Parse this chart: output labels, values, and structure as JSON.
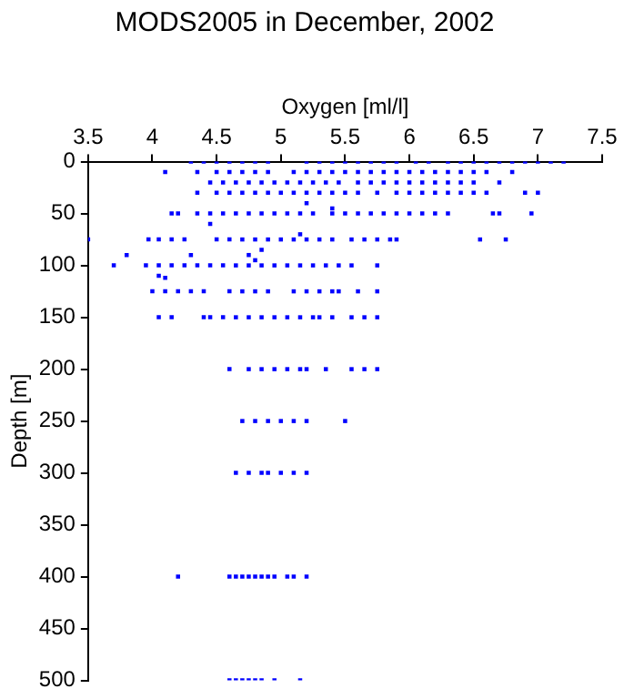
{
  "chart_data": {
    "type": "scatter",
    "title": "MODS2005 in December, 2002",
    "xlabel": "Oxygen [ml/l]",
    "ylabel": "Depth [m]",
    "xlim": [
      3.5,
      7.5
    ],
    "xticks": [
      3.5,
      4,
      4.5,
      5,
      5.5,
      6,
      6.5,
      7,
      7.5
    ],
    "ylim": [
      500,
      0
    ],
    "yticks": [
      0,
      50,
      100,
      150,
      200,
      250,
      300,
      350,
      400,
      450,
      500
    ],
    "grid": false,
    "legend": false,
    "marker": "square",
    "series": [
      {
        "color": "#0000ff",
        "x": [
          4.3,
          4.4,
          4.5,
          4.6,
          4.7,
          4.8,
          4.9,
          5.2,
          5.3,
          5.4,
          5.5,
          5.6,
          5.7,
          5.8,
          5.9,
          6.05,
          6.15,
          6.3,
          6.4,
          6.5,
          6.6,
          6.7,
          6.8,
          6.9,
          7.0,
          7.1,
          7.2
        ],
        "values": [
          0,
          0,
          0,
          0,
          0,
          0,
          0,
          0,
          0,
          0,
          0,
          0,
          0,
          0,
          0,
          0,
          0,
          0,
          0,
          0,
          0,
          0,
          0,
          0,
          0,
          0,
          0
        ]
      },
      {
        "color": "#0000ff",
        "x": [
          4.1,
          4.35,
          4.5,
          4.6,
          4.7,
          4.8,
          4.9,
          5.1,
          5.2,
          5.3,
          5.4,
          5.5,
          5.6,
          5.7,
          5.8,
          5.9,
          6.0,
          6.1,
          6.2,
          6.3,
          6.4,
          6.5,
          6.6,
          6.8
        ],
        "values": [
          10,
          10,
          10,
          10,
          10,
          10,
          10,
          10,
          10,
          10,
          10,
          10,
          10,
          10,
          10,
          10,
          10,
          10,
          10,
          10,
          10,
          10,
          10,
          10
        ]
      },
      {
        "color": "#0000ff",
        "x": [
          4.45,
          4.55,
          4.65,
          4.75,
          4.85,
          4.95,
          5.05,
          5.15,
          5.25,
          5.35,
          5.45,
          5.6,
          5.7,
          5.8,
          5.9,
          6.0,
          6.1,
          6.2,
          6.3,
          6.4,
          6.5,
          6.7
        ],
        "values": [
          20,
          20,
          20,
          20,
          20,
          20,
          20,
          20,
          20,
          20,
          20,
          20,
          20,
          20,
          20,
          20,
          20,
          20,
          20,
          20,
          20,
          20
        ]
      },
      {
        "color": "#0000ff",
        "x": [
          4.35,
          4.5,
          4.6,
          4.7,
          4.8,
          4.9,
          5.0,
          5.1,
          5.2,
          5.3,
          5.4,
          5.5,
          5.6,
          5.75,
          5.9,
          6.0,
          6.1,
          6.2,
          6.3,
          6.4,
          6.5,
          6.6,
          6.9,
          7.0
        ],
        "values": [
          30,
          30,
          30,
          30,
          30,
          30,
          30,
          30,
          30,
          30,
          30,
          30,
          30,
          30,
          30,
          30,
          30,
          30,
          30,
          30,
          30,
          30,
          30,
          30
        ]
      },
      {
        "color": "#0000ff",
        "x": [
          5.2,
          5.4,
          4.45,
          5.15
        ],
        "values": [
          40,
          45,
          60,
          70
        ]
      },
      {
        "color": "#0000ff",
        "x": [
          4.15,
          4.2,
          4.35,
          4.45,
          4.55,
          4.65,
          4.75,
          4.85,
          4.95,
          5.05,
          5.15,
          5.25,
          5.4,
          5.5,
          5.6,
          5.7,
          5.8,
          5.9,
          6.0,
          6.1,
          6.2,
          6.3,
          6.65,
          6.7,
          6.95
        ],
        "values": [
          50,
          50,
          50,
          50,
          50,
          50,
          50,
          50,
          50,
          50,
          50,
          50,
          50,
          50,
          50,
          50,
          50,
          50,
          50,
          50,
          50,
          50,
          50,
          50,
          50
        ]
      },
      {
        "color": "#0000ff",
        "x": [
          3.5,
          3.97,
          4.05,
          4.15,
          4.25,
          4.5,
          4.6,
          4.7,
          4.8,
          4.9,
          5.0,
          5.1,
          5.2,
          5.3,
          5.4,
          5.55,
          5.65,
          5.75,
          5.85,
          5.9,
          6.55,
          6.75
        ],
        "values": [
          75,
          75,
          75,
          75,
          75,
          75,
          75,
          75,
          75,
          75,
          75,
          75,
          75,
          75,
          75,
          75,
          75,
          75,
          75,
          75,
          75,
          75
        ]
      },
      {
        "color": "#0000ff",
        "x": [
          3.8,
          4.3,
          4.75,
          4.85,
          4.8,
          4.05,
          4.1
        ],
        "values": [
          90,
          90,
          90,
          85,
          95,
          110,
          112
        ]
      },
      {
        "color": "#0000ff",
        "x": [
          3.7,
          3.95,
          4.05,
          4.15,
          4.25,
          4.35,
          4.45,
          4.55,
          4.65,
          4.75,
          4.85,
          4.95,
          5.05,
          5.15,
          5.25,
          5.35,
          5.45,
          5.55,
          5.75
        ],
        "values": [
          100,
          100,
          100,
          100,
          100,
          100,
          100,
          100,
          100,
          100,
          100,
          100,
          100,
          100,
          100,
          100,
          100,
          100,
          100
        ]
      },
      {
        "color": "#0000ff",
        "x": [
          4.0,
          4.1,
          4.2,
          4.3,
          4.4,
          4.6,
          4.7,
          4.8,
          4.9,
          5.1,
          5.2,
          5.3,
          5.4,
          5.45,
          5.6,
          5.75
        ],
        "values": [
          125,
          125,
          125,
          125,
          125,
          125,
          125,
          125,
          125,
          125,
          125,
          125,
          125,
          125,
          125,
          125
        ]
      },
      {
        "color": "#0000ff",
        "x": [
          4.05,
          4.15,
          4.4,
          4.45,
          4.55,
          4.65,
          4.75,
          4.85,
          4.95,
          5.05,
          5.15,
          5.25,
          5.3,
          5.4,
          5.55,
          5.65,
          5.75
        ],
        "values": [
          150,
          150,
          150,
          150,
          150,
          150,
          150,
          150,
          150,
          150,
          150,
          150,
          150,
          150,
          150,
          150,
          150
        ]
      },
      {
        "color": "#0000ff",
        "x": [
          4.6,
          4.75,
          4.85,
          4.95,
          5.05,
          5.15,
          5.2,
          5.35,
          5.55,
          5.65,
          5.75
        ],
        "values": [
          200,
          200,
          200,
          200,
          200,
          200,
          200,
          200,
          200,
          200,
          200
        ]
      },
      {
        "color": "#0000ff",
        "x": [
          4.7,
          4.8,
          4.9,
          5.0,
          5.1,
          5.2,
          5.5
        ],
        "values": [
          250,
          250,
          250,
          250,
          250,
          250,
          250
        ]
      },
      {
        "color": "#0000ff",
        "x": [
          4.65,
          4.75,
          4.85,
          4.9,
          5.0,
          5.1,
          5.2
        ],
        "values": [
          300,
          300,
          300,
          300,
          300,
          300,
          300
        ]
      },
      {
        "color": "#0000ff",
        "x": [
          4.2,
          4.6,
          4.65,
          4.7,
          4.75,
          4.8,
          4.85,
          4.9,
          4.95,
          5.05,
          5.1,
          5.2
        ],
        "values": [
          400,
          400,
          400,
          400,
          400,
          400,
          400,
          400,
          400,
          400,
          400,
          400
        ]
      },
      {
        "color": "#0000ff",
        "x": [
          4.6,
          4.65,
          4.7,
          4.75,
          4.8,
          4.85,
          4.95,
          5.15
        ],
        "values": [
          500,
          500,
          500,
          500,
          500,
          500,
          500,
          500
        ]
      }
    ]
  }
}
